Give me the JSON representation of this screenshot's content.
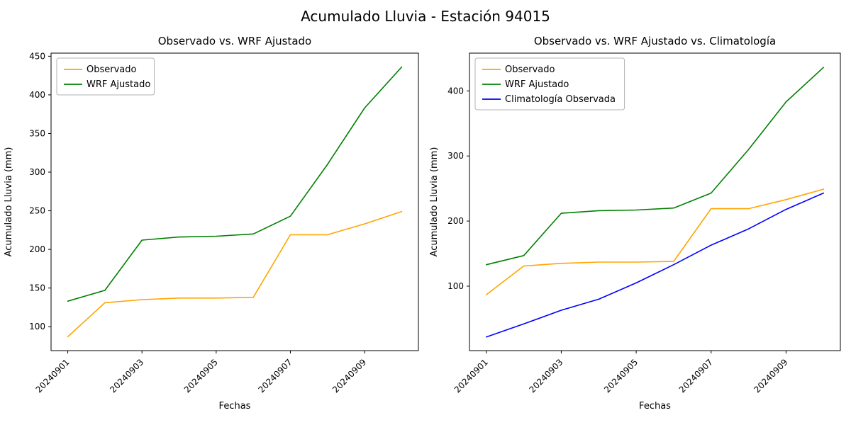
{
  "figure": {
    "suptitle": "Acumulado Lluvia - Estación 94015"
  },
  "chart_data": [
    {
      "type": "line",
      "title": "Observado vs. WRF Ajustado",
      "xlabel": "Fechas",
      "ylabel": "Acumulado Lluvia (mm)",
      "x": [
        "20240901",
        "20240902",
        "20240903",
        "20240904",
        "20240905",
        "20240906",
        "20240907",
        "20240908",
        "20240909",
        "20240910"
      ],
      "xtick_indices": [
        0,
        2,
        4,
        6,
        8
      ],
      "xtick_labels": [
        "20240901",
        "20240903",
        "20240905",
        "20240907",
        "20240909"
      ],
      "yticks": [
        100,
        150,
        200,
        250,
        300,
        350,
        400,
        450
      ],
      "ylim": [
        69,
        454
      ],
      "grid": false,
      "legend_position": "upper-left",
      "series": [
        {
          "name": "Observado",
          "color": "#ffa500",
          "values": [
            87,
            131,
            135,
            137,
            137,
            138,
            219,
            219,
            233,
            249
          ]
        },
        {
          "name": "WRF Ajustado",
          "color": "#008000",
          "values": [
            133,
            147,
            212,
            216,
            217,
            220,
            243,
            310,
            383,
            436
          ]
        }
      ]
    },
    {
      "type": "line",
      "title": "Observado vs. WRF Ajustado vs. Climatología",
      "xlabel": "Fechas",
      "ylabel": "Acumulado Lluvia (mm)",
      "x": [
        "20240901",
        "20240902",
        "20240903",
        "20240904",
        "20240905",
        "20240906",
        "20240907",
        "20240908",
        "20240909",
        "20240910"
      ],
      "xtick_indices": [
        0,
        2,
        4,
        6,
        8
      ],
      "xtick_labels": [
        "20240901",
        "20240903",
        "20240905",
        "20240907",
        "20240909"
      ],
      "yticks": [
        100,
        200,
        300,
        400
      ],
      "ylim": [
        1,
        458
      ],
      "grid": false,
      "legend_position": "upper-left",
      "series": [
        {
          "name": "Observado",
          "color": "#ffa500",
          "values": [
            87,
            131,
            135,
            137,
            137,
            138,
            219,
            219,
            233,
            249
          ]
        },
        {
          "name": "WRF Ajustado",
          "color": "#008000",
          "values": [
            133,
            147,
            212,
            216,
            217,
            220,
            243,
            310,
            383,
            436
          ]
        },
        {
          "name": "Climatología Observada",
          "color": "#0000ff",
          "values": [
            22,
            42,
            63,
            80,
            105,
            133,
            163,
            188,
            218,
            243
          ]
        }
      ]
    }
  ]
}
